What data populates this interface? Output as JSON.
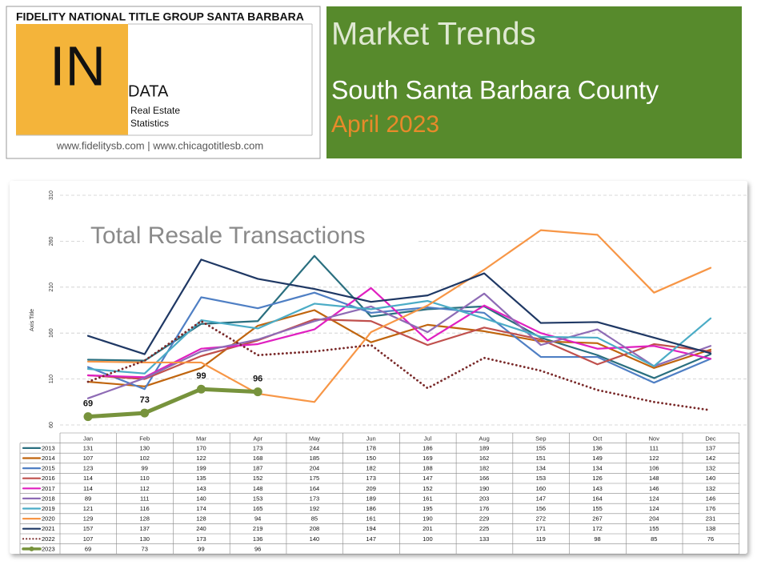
{
  "header": {
    "brand": "FIDELITY NATIONAL TITLE GROUP SANTA BARBARA",
    "logo": "IN",
    "logo_sub": "DATA",
    "line1": "Real Estate",
    "line2": "Statistics",
    "urls": "www.fidelitysb.com | www.chicagotitlesb.com",
    "title": "Market Trends",
    "subtitle": "South Santa Barbara County",
    "date": "April 2023"
  },
  "chart_data": {
    "type": "line",
    "title": "Total Resale Transactions",
    "y_label": "Axis Title",
    "categories": [
      "Jan",
      "Feb",
      "Mar",
      "Apr",
      "May",
      "Jun",
      "Jul",
      "Aug",
      "Sep",
      "Oct",
      "Nov",
      "Dec"
    ],
    "ylim": [
      60,
      310
    ],
    "yticks": [
      60,
      110,
      160,
      210,
      260,
      310
    ],
    "grid": true,
    "series": [
      {
        "name": "2013",
        "color": "#2a6f7f",
        "values": [
          131,
          130,
          170,
          173,
          244,
          178,
          186,
          189,
          155,
          136,
          111,
          137
        ]
      },
      {
        "name": "2014",
        "color": "#c0650e",
        "values": [
          107,
          102,
          122,
          168,
          185,
          150,
          169,
          162,
          151,
          149,
          122,
          142
        ]
      },
      {
        "name": "2015",
        "color": "#4f7fc4",
        "values": [
          123,
          99,
          199,
          187,
          204,
          182,
          188,
          182,
          134,
          134,
          106,
          132
        ]
      },
      {
        "name": "2016",
        "color": "#c0504d",
        "values": [
          114,
          110,
          135,
          152,
          175,
          173,
          147,
          166,
          153,
          126,
          148,
          140
        ]
      },
      {
        "name": "2017",
        "color": "#e020c0",
        "values": [
          114,
          112,
          143,
          148,
          164,
          209,
          152,
          190,
          160,
          143,
          146,
          132
        ]
      },
      {
        "name": "2018",
        "color": "#8e6bb5",
        "values": [
          89,
          111,
          140,
          153,
          173,
          189,
          161,
          203,
          147,
          164,
          124,
          146
        ]
      },
      {
        "name": "2019",
        "color": "#4bacc6",
        "values": [
          121,
          116,
          174,
          165,
          192,
          186,
          195,
          176,
          156,
          155,
          124,
          176
        ]
      },
      {
        "name": "2020",
        "color": "#f79646",
        "values": [
          129,
          128,
          128,
          94,
          85,
          161,
          190,
          229,
          272,
          267,
          204,
          231
        ]
      },
      {
        "name": "2021",
        "color": "#1f3864",
        "values": [
          157,
          137,
          240,
          219,
          208,
          194,
          201,
          225,
          171,
          172,
          155,
          138
        ]
      },
      {
        "name": "2022",
        "color": "#7a2a2a",
        "line_style": "dotted",
        "values": [
          107,
          130,
          173,
          136,
          140,
          147,
          100,
          133,
          119,
          98,
          85,
          76
        ]
      },
      {
        "name": "2023",
        "color": "#77933c",
        "line_style": "bold",
        "values": [
          69,
          73,
          99,
          96,
          null,
          null,
          null,
          null,
          null,
          null,
          null,
          null
        ]
      }
    ]
  }
}
